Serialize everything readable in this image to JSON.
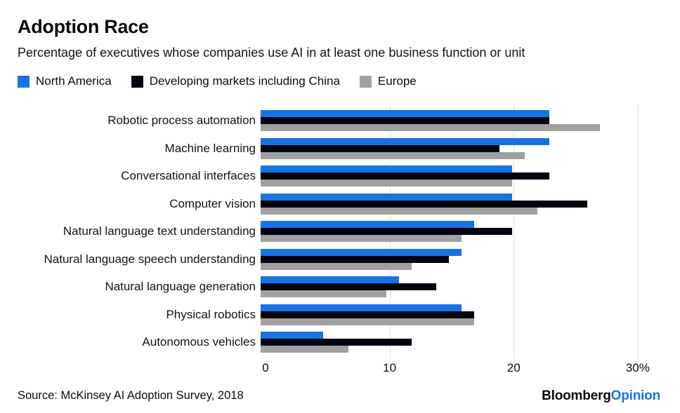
{
  "header": {
    "title": "Adoption Race",
    "subtitle": "Percentage of executives whose companies use AI in at least one business function or unit"
  },
  "chart_data": {
    "type": "bar",
    "orientation": "horizontal",
    "title": "Adoption Race",
    "subtitle": "Percentage of executives whose companies use AI in at least one business function or unit",
    "categories": [
      "Robotic process automation",
      "Machine learning",
      "Conversational interfaces",
      "Computer vision",
      "Natural language text understanding",
      "Natural language speech understanding",
      "Natural language generation",
      "Physical robotics",
      "Autonomous vehicles"
    ],
    "series": [
      {
        "name": "North America",
        "color": "#1673e6",
        "values": [
          23,
          23,
          20,
          20,
          17,
          16,
          11,
          16,
          5
        ]
      },
      {
        "name": "Developing markets including China",
        "color": "#040410",
        "values": [
          23,
          19,
          23,
          26,
          20,
          15,
          14,
          17,
          12
        ]
      },
      {
        "name": "Europe",
        "color": "#a0a0a0",
        "values": [
          27,
          21,
          20,
          22,
          16,
          12,
          10,
          17,
          7
        ]
      }
    ],
    "xlabel": "",
    "ylabel": "",
    "xlim": [
      0,
      30.8
    ],
    "ticks": [
      {
        "value": 0,
        "label": "0"
      },
      {
        "value": 10,
        "label": "10"
      },
      {
        "value": 20,
        "label": "20"
      },
      {
        "value": 30,
        "label": "30%"
      }
    ],
    "grid": "vertical gridlines at 10, 20, 30",
    "gridline_color": "#e2e2e2",
    "legend_position": "top-left"
  },
  "footer": {
    "source": "Source: McKinsey AI Adoption Survey, 2018",
    "brand": {
      "bloomberg": "Bloomberg",
      "opinion": "Opinion"
    }
  }
}
